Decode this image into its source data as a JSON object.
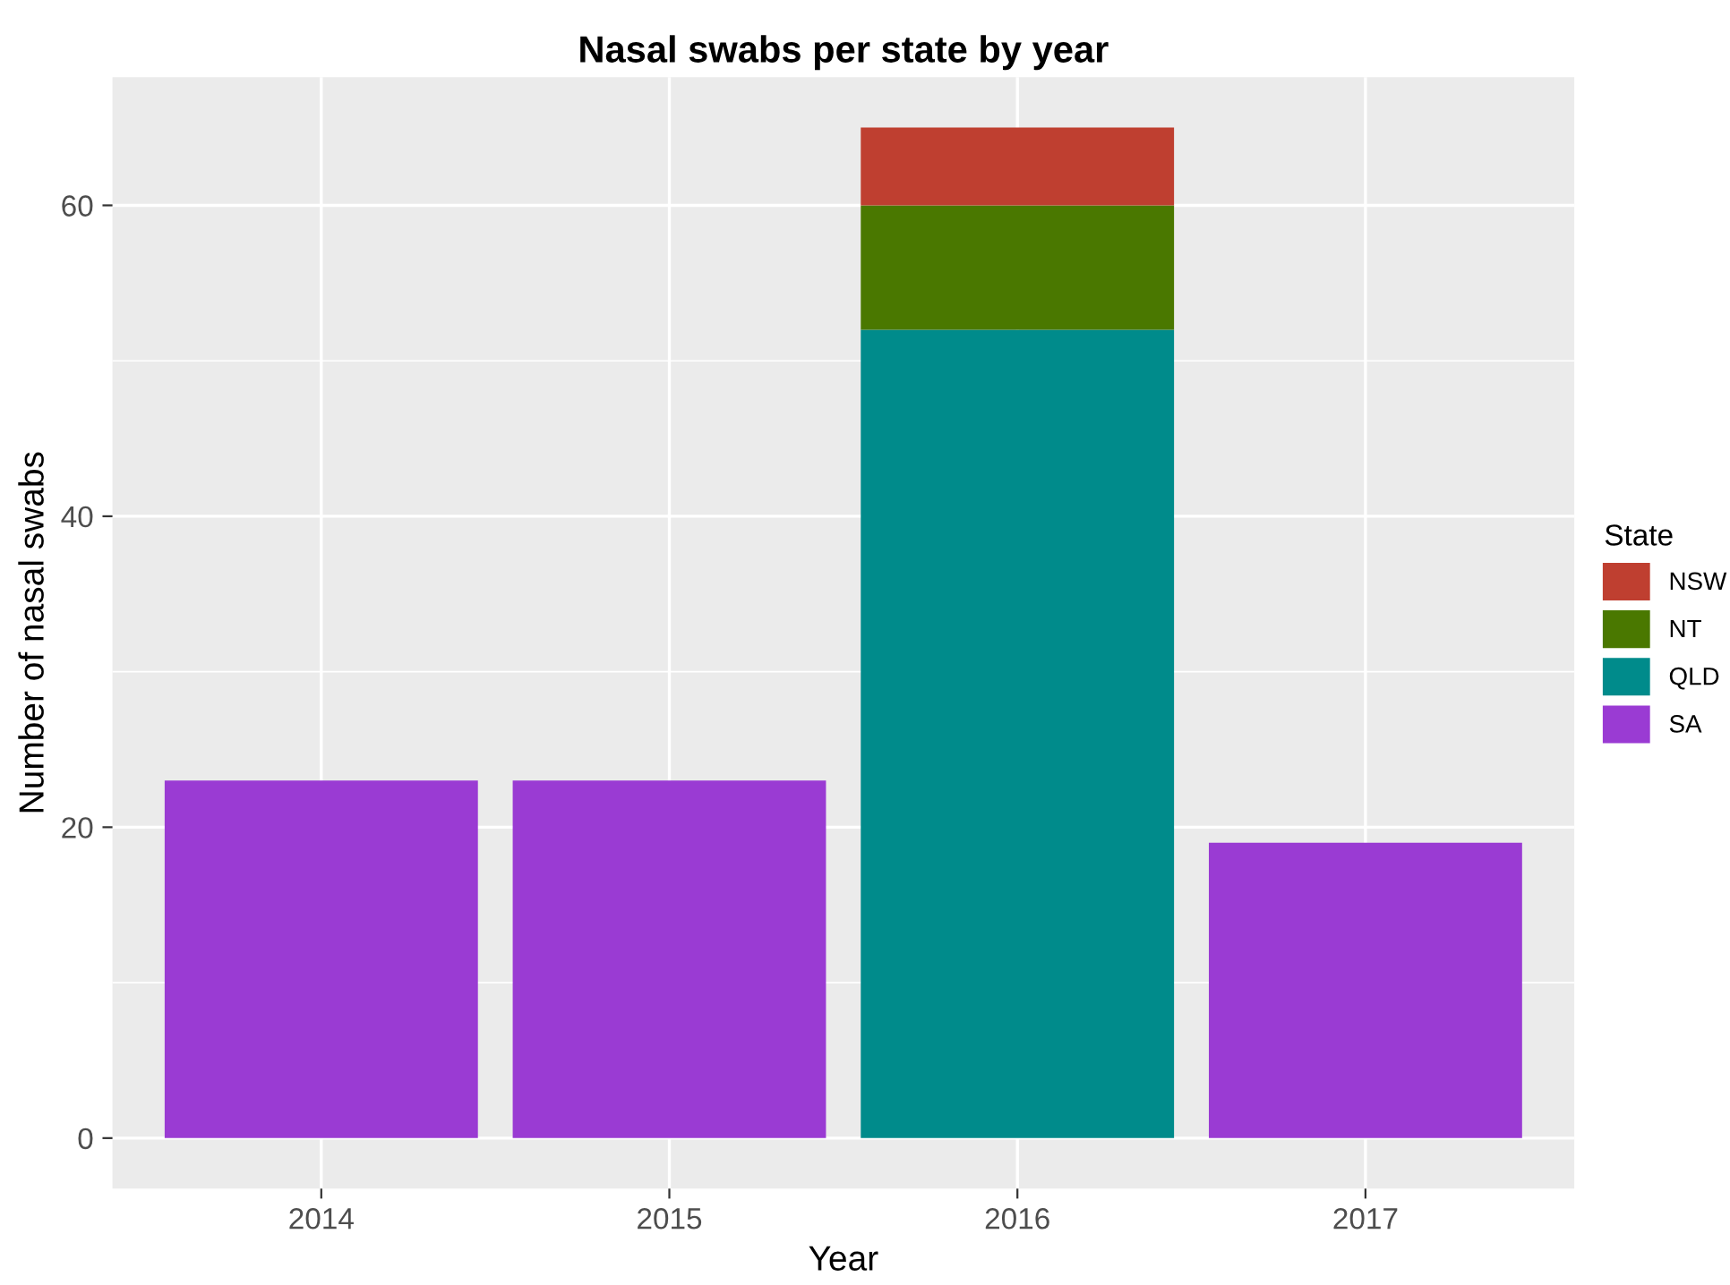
{
  "chart_data": {
    "type": "bar",
    "title": "Nasal swabs per state by year",
    "xlabel": "Year",
    "ylabel": "Number of nasal swabs",
    "legend_title": "State",
    "categories": [
      "2014",
      "2015",
      "2016",
      "2017"
    ],
    "series": [
      {
        "name": "SA",
        "color": "#9a3bd3",
        "values": [
          23,
          23,
          null,
          19
        ]
      },
      {
        "name": "QLD",
        "color": "#008b8b",
        "values": [
          null,
          null,
          52,
          null
        ]
      },
      {
        "name": "NT",
        "color": "#4a7800",
        "values": [
          null,
          null,
          8,
          null
        ]
      },
      {
        "name": "NSW",
        "color": "#bf3f30",
        "values": [
          null,
          null,
          5,
          null
        ]
      }
    ],
    "stacked": true,
    "ylim": [
      -3.25,
      68.25
    ],
    "yticks": [
      0,
      20,
      40,
      60
    ],
    "grid": true,
    "legend": "right"
  }
}
